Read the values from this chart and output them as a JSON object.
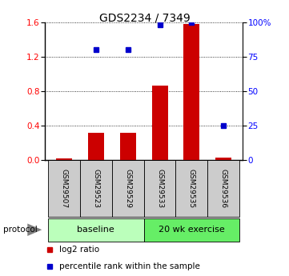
{
  "title": "GDS2234 / 7349",
  "samples": [
    "GSM29507",
    "GSM29523",
    "GSM29529",
    "GSM29533",
    "GSM29535",
    "GSM29536"
  ],
  "log2_ratio": [
    0.02,
    0.32,
    0.32,
    0.86,
    1.58,
    0.03
  ],
  "percentile_rank": [
    null,
    80,
    80,
    98,
    100,
    25
  ],
  "left_ylim": [
    0,
    1.6
  ],
  "right_ylim": [
    0,
    100
  ],
  "left_yticks": [
    0,
    0.4,
    0.8,
    1.2,
    1.6
  ],
  "right_yticks": [
    0,
    25,
    50,
    75,
    100
  ],
  "right_yticklabels": [
    "0",
    "25",
    "50",
    "75",
    "100%"
  ],
  "bar_color": "#cc0000",
  "dot_color": "#0000cc",
  "protocol_groups": [
    {
      "label": "baseline",
      "start": 0,
      "end": 3,
      "color": "#bbffbb"
    },
    {
      "label": "20 wk exercise",
      "start": 3,
      "end": 6,
      "color": "#66ee66"
    }
  ],
  "protocol_label": "protocol",
  "legend_items": [
    {
      "color": "#cc0000",
      "label": "log2 ratio"
    },
    {
      "color": "#0000cc",
      "label": "percentile rank within the sample"
    }
  ],
  "sample_box_color": "#cccccc",
  "bar_width": 0.5
}
